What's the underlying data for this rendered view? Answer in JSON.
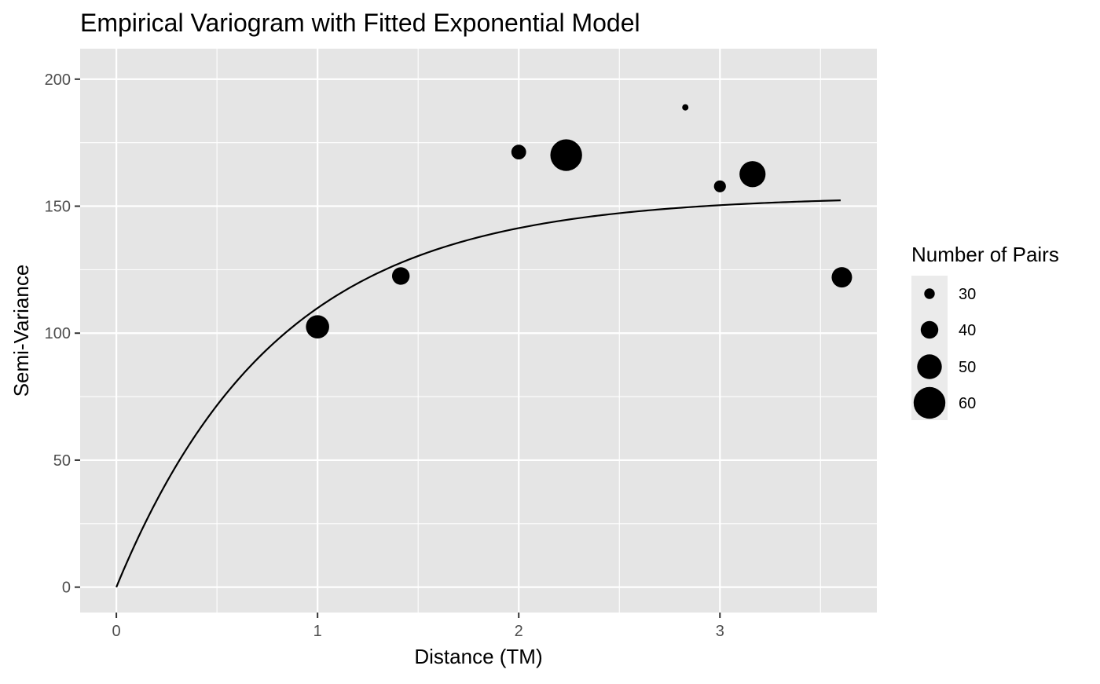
{
  "chart_data": {
    "type": "scatter",
    "title": "Empirical Variogram with Fitted Exponential Model",
    "xlabel": "Distance (TM)",
    "ylabel": "Semi-Variance",
    "xlim": [
      -0.18,
      3.78
    ],
    "ylim": [
      -10,
      212
    ],
    "x_ticks": [
      0,
      1,
      2,
      3
    ],
    "y_ticks": [
      0,
      50,
      100,
      150,
      200
    ],
    "grid": true,
    "legend_position": "right",
    "legend": {
      "title": "Number of Pairs",
      "entries": [
        {
          "label": "30",
          "value": 30
        },
        {
          "label": "40",
          "value": 40
        },
        {
          "label": "50",
          "value": 50
        },
        {
          "label": "60",
          "value": 60
        }
      ]
    },
    "points": [
      {
        "x": 1.0,
        "y": 102.5,
        "np": 48
      },
      {
        "x": 1.414,
        "y": 122.5,
        "np": 40
      },
      {
        "x": 2.0,
        "y": 171.3,
        "np": 36
      },
      {
        "x": 2.236,
        "y": 170.1,
        "np": 60
      },
      {
        "x": 2.828,
        "y": 188.9,
        "np": 24
      },
      {
        "x": 3.0,
        "y": 157.8,
        "np": 32
      },
      {
        "x": 3.162,
        "y": 162.6,
        "np": 52
      },
      {
        "x": 3.606,
        "y": 122.0,
        "np": 44
      }
    ],
    "fitted_model": {
      "type": "exponential",
      "nugget": 0,
      "sill": 154,
      "range": 0.8,
      "x_max": 3.6
    },
    "colors": {
      "panel": "#e5e5e5",
      "grid": "#ffffff",
      "points": "#000000",
      "curve": "#000000",
      "text": "#000000",
      "tick_text": "#4d4d4d"
    }
  }
}
